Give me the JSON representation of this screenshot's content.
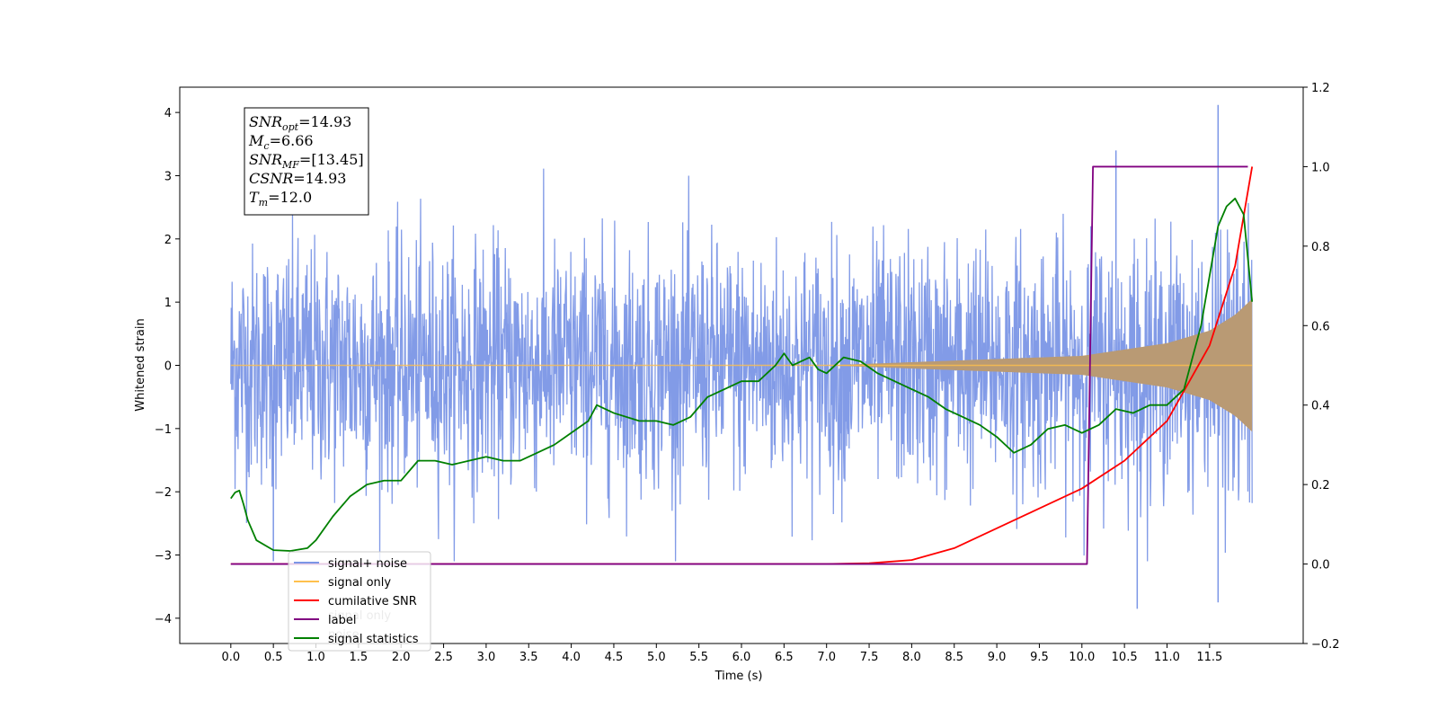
{
  "chart_data": {
    "type": "line",
    "xlabel": "Time (s)",
    "ylabel": "Whitened strain",
    "xlim": [
      -0.6,
      12.6
    ],
    "ylim": [
      -4.4,
      4.4
    ],
    "y2lim": [
      -0.2,
      1.2
    ],
    "x_ticks": [
      "0.0",
      "0.5",
      "1.0",
      "1.5",
      "2.0",
      "2.5",
      "3.0",
      "3.5",
      "4.0",
      "4.5",
      "5.0",
      "5.5",
      "6.0",
      "6.5",
      "7.0",
      "7.5",
      "8.0",
      "8.5",
      "9.0",
      "9.5",
      "10.0",
      "10.5",
      "11.0",
      "11.5"
    ],
    "y_ticks": [
      "4",
      "3",
      "2",
      "1",
      "0",
      "−1",
      "−2",
      "−3",
      "−4"
    ],
    "y2_ticks": [
      "1.2",
      "1.0",
      "0.8",
      "0.6",
      "0.4",
      "0.2",
      "0.0",
      "−0.2"
    ],
    "annotation": {
      "lines": [
        {
          "sym": "SNR",
          "sub": "opt",
          "value": "=14.93"
        },
        {
          "sym": "M",
          "sub": "c",
          "value": "=6.66"
        },
        {
          "sym": "SNR",
          "sub": "MF",
          "value": "=[13.45]"
        },
        {
          "sym": "CSNR",
          "sub": "",
          "value": "=14.93"
        },
        {
          "sym": "T",
          "sub": "m",
          "value": "=12.0"
        }
      ]
    },
    "legend": {
      "placement": "lower-left",
      "entries": [
        {
          "label": "signal+ noise",
          "color": "#7b96e6"
        },
        {
          "label": "signal only",
          "color": "#ffc04d"
        },
        {
          "label": "cumilative SNR",
          "color": "#ff0000"
        },
        {
          "label": "label",
          "color": "#800080"
        },
        {
          "label": "signal statistics",
          "color": "#008000"
        }
      ],
      "hidden_text": [
        "signal only",
        "noise"
      ]
    },
    "series": [
      {
        "name": "signal+ noise",
        "axis": "left",
        "color": "#7b96e6",
        "x_range": [
          0.0,
          12.0
        ],
        "envelope_upper": 3.3,
        "envelope_lower": -3.1,
        "peaks": [
          [
            11.6,
            4.12
          ],
          [
            10.65,
            -3.85
          ],
          [
            11.6,
            -3.75
          ],
          [
            10.4,
            3.4
          ],
          [
            0.5,
            -3.1
          ]
        ]
      },
      {
        "name": "signal only",
        "axis": "left",
        "color": "#ffc04d",
        "x_range": [
          0.0,
          12.0
        ],
        "amplitude_points": [
          [
            0.0,
            0.0
          ],
          [
            7.0,
            0.0
          ],
          [
            8.0,
            0.05
          ],
          [
            9.0,
            0.1
          ],
          [
            10.0,
            0.15
          ],
          [
            11.0,
            0.35
          ],
          [
            11.5,
            0.55
          ],
          [
            11.8,
            0.8
          ],
          [
            12.0,
            1.05
          ]
        ]
      },
      {
        "name": "cumilative SNR",
        "axis": "right",
        "color": "#ff0000",
        "points": [
          [
            0.0,
            0.0
          ],
          [
            7.0,
            0.0
          ],
          [
            7.5,
            0.002
          ],
          [
            8.0,
            0.01
          ],
          [
            8.5,
            0.04
          ],
          [
            9.0,
            0.09
          ],
          [
            9.5,
            0.14
          ],
          [
            10.0,
            0.19
          ],
          [
            10.5,
            0.26
          ],
          [
            11.0,
            0.36
          ],
          [
            11.5,
            0.55
          ],
          [
            11.8,
            0.75
          ],
          [
            12.0,
            1.0
          ]
        ]
      },
      {
        "name": "label",
        "axis": "right",
        "color": "#800080",
        "points": [
          [
            0.0,
            0.0
          ],
          [
            10.06,
            0.0
          ],
          [
            10.13,
            1.0
          ],
          [
            11.95,
            1.0
          ]
        ]
      },
      {
        "name": "signal statistics",
        "axis": "right",
        "color": "#008000",
        "points": [
          [
            0.0,
            0.165
          ],
          [
            0.05,
            0.18
          ],
          [
            0.1,
            0.185
          ],
          [
            0.15,
            0.15
          ],
          [
            0.2,
            0.11
          ],
          [
            0.3,
            0.06
          ],
          [
            0.5,
            0.035
          ],
          [
            0.7,
            0.033
          ],
          [
            0.9,
            0.04
          ],
          [
            1.0,
            0.06
          ],
          [
            1.2,
            0.12
          ],
          [
            1.4,
            0.17
          ],
          [
            1.6,
            0.2
          ],
          [
            1.8,
            0.21
          ],
          [
            2.0,
            0.21
          ],
          [
            2.2,
            0.26
          ],
          [
            2.4,
            0.26
          ],
          [
            2.6,
            0.25
          ],
          [
            2.8,
            0.26
          ],
          [
            3.0,
            0.27
          ],
          [
            3.2,
            0.26
          ],
          [
            3.4,
            0.26
          ],
          [
            3.6,
            0.28
          ],
          [
            3.8,
            0.3
          ],
          [
            4.0,
            0.33
          ],
          [
            4.2,
            0.36
          ],
          [
            4.3,
            0.4
          ],
          [
            4.5,
            0.38
          ],
          [
            4.8,
            0.36
          ],
          [
            5.0,
            0.36
          ],
          [
            5.2,
            0.35
          ],
          [
            5.4,
            0.37
          ],
          [
            5.6,
            0.42
          ],
          [
            5.8,
            0.44
          ],
          [
            6.0,
            0.46
          ],
          [
            6.2,
            0.46
          ],
          [
            6.4,
            0.5
          ],
          [
            6.5,
            0.53
          ],
          [
            6.6,
            0.5
          ],
          [
            6.8,
            0.52
          ],
          [
            6.9,
            0.49
          ],
          [
            7.0,
            0.48
          ],
          [
            7.2,
            0.52
          ],
          [
            7.4,
            0.51
          ],
          [
            7.6,
            0.48
          ],
          [
            7.8,
            0.46
          ],
          [
            8.0,
            0.44
          ],
          [
            8.2,
            0.42
          ],
          [
            8.4,
            0.39
          ],
          [
            8.6,
            0.37
          ],
          [
            8.8,
            0.35
          ],
          [
            9.0,
            0.32
          ],
          [
            9.2,
            0.28
          ],
          [
            9.4,
            0.3
          ],
          [
            9.6,
            0.34
          ],
          [
            9.8,
            0.35
          ],
          [
            10.0,
            0.33
          ],
          [
            10.2,
            0.35
          ],
          [
            10.4,
            0.39
          ],
          [
            10.6,
            0.38
          ],
          [
            10.8,
            0.4
          ],
          [
            11.0,
            0.4
          ],
          [
            11.2,
            0.44
          ],
          [
            11.4,
            0.6
          ],
          [
            11.6,
            0.85
          ],
          [
            11.7,
            0.9
          ],
          [
            11.8,
            0.92
          ],
          [
            11.9,
            0.88
          ],
          [
            12.0,
            0.66
          ]
        ]
      }
    ]
  }
}
